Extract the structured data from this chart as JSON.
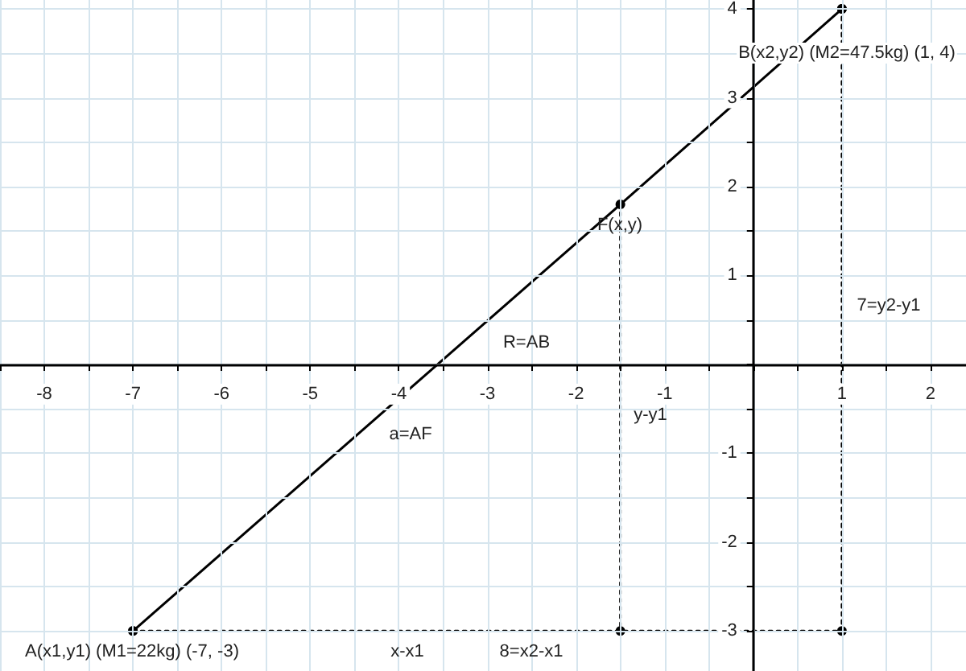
{
  "chart_data": {
    "type": "line",
    "series": [
      {
        "x": [
          -7,
          -1.5,
          1
        ],
        "values": [
          -3,
          1.8,
          4
        ],
        "color": "#000000",
        "marker": "circle",
        "line_style": "solid"
      },
      {
        "x": [
          -1.5,
          -1.5
        ],
        "values": [
          1.8,
          -3
        ],
        "color": "#000000",
        "line_style": "dotted"
      },
      {
        "x": [
          -7,
          -1.5,
          1,
          1
        ],
        "values": [
          -3,
          -3,
          -3,
          4
        ],
        "color": "#000000",
        "marker": "circle",
        "line_style": "dotted"
      }
    ],
    "xlim": [
      -8.5,
      2.4
    ],
    "ylim": [
      -3.45,
      4.1
    ],
    "xticks": [
      {
        "value": -8.5,
        "label": null
      },
      -8,
      {
        "value": -7.5,
        "label": null
      },
      -7,
      {
        "value": -6.5,
        "label": null
      },
      -6,
      {
        "value": -5.5,
        "label": null
      },
      -5,
      {
        "value": -4.5,
        "label": null
      },
      -4,
      {
        "value": -3.5,
        "label": null
      },
      -3,
      {
        "value": -2.5,
        "label": null
      },
      -2,
      {
        "value": -1.5,
        "label": null
      },
      -1,
      {
        "value": -0.5,
        "label": null
      },
      {
        "value": 0,
        "label": null
      },
      {
        "value": 0.5,
        "label": null
      },
      1,
      {
        "value": 1.5,
        "label": null
      },
      2
    ],
    "yticks": [
      -3,
      {
        "value": -2.5,
        "label": null
      },
      -2,
      {
        "value": -1.5,
        "label": null
      },
      -1,
      {
        "value": -0.5,
        "label": null
      },
      {
        "value": 0,
        "label": null
      },
      {
        "value": 0.5,
        "label": null
      },
      1,
      {
        "value": 1.5,
        "label": null
      },
      2,
      {
        "value": 2.5,
        "label": null
      },
      3,
      {
        "value": 3.5,
        "label": null
      },
      4
    ],
    "grid": true,
    "annotations": [
      "B(x2,y2) (M2=47.5kg) (1, 4)",
      "F(x,y)",
      "A(x1,y1) (M1=22kg) (-7, -3)",
      "R=AB",
      "a=AF",
      "y-y1",
      "7=y2-y1",
      "x-x1",
      "8=x2-x1"
    ]
  }
}
